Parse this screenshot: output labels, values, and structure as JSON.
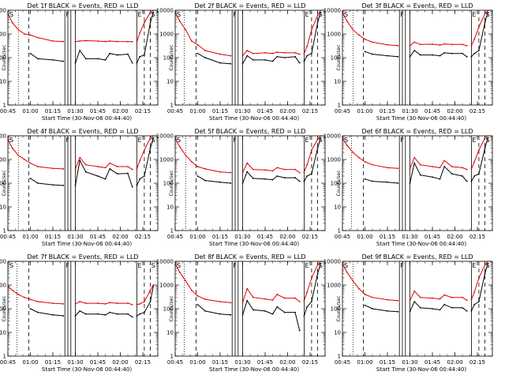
{
  "colors": {
    "events": "#000000",
    "lld": "#e00000",
    "axes": "#000000",
    "background": "#ffffff"
  },
  "chart_data": {
    "type": "line",
    "layout": "3x3 grid of log-scale time-series panels",
    "y_scale": "log",
    "ylim": [
      1,
      10000
    ],
    "yticks": [
      1,
      10,
      100,
      1000,
      10000
    ],
    "ytick_labels": [
      "1",
      "10",
      "100",
      "1000",
      "10000"
    ],
    "ylabel": "Counts/sec",
    "xlabel": "Start Time (30-Nov-06 00:44:40)",
    "xlim": [
      "00:45",
      "02:25"
    ],
    "xticks": [
      "00:45",
      "01:00",
      "01:15",
      "01:30",
      "01:45",
      "02:00",
      "02:15"
    ],
    "markers": {
      "dotted": [
        "00:52",
        "00:51",
        "00:52",
        "00:52",
        "00:52",
        "00:51",
        "00:51",
        "00:51",
        "00:52"
      ],
      "dashed": [
        "00:59",
        "02:16",
        "02:20"
      ],
      "solid": [
        "01:23",
        "01:25",
        "01:27",
        "01:30",
        "02:11"
      ]
    },
    "letters": {
      "start": "S",
      "F": "F",
      "E": "E",
      "end": "S"
    },
    "panels": [
      {
        "title": "Det 1f BLACK = Events, RED = LLD",
        "x": [
          "00:45",
          "00:48",
          "00:52",
          "00:56",
          "01:00",
          "01:05",
          "01:15",
          "01:22",
          "01:23",
          "01:30",
          "01:33",
          "01:37",
          "01:45",
          "01:50",
          "01:53",
          "01:58",
          "02:05",
          "02:08",
          "02:10",
          "02:11",
          "02:13",
          "02:16",
          "02:20",
          "02:22"
        ],
        "series": [
          {
            "name": "Events",
            "values": [
              null,
              null,
              null,
              null,
              150,
              90,
              80,
              70,
              null,
              60,
              200,
              90,
              90,
              80,
              150,
              130,
              140,
              60,
              null,
              60,
              110,
              130,
              3000,
              8000
            ]
          },
          {
            "name": "LLD",
            "values": [
              7000,
              3000,
              1500,
              1000,
              900,
              700,
              500,
              480,
              null,
              480,
              500,
              520,
              500,
              480,
              500,
              480,
              470,
              470,
              null,
              450,
              1100,
              3000,
              8000,
              10000
            ]
          }
        ]
      },
      {
        "title": "Det 2f BLACK = Events, RED = LLD",
        "x": [
          "00:45",
          "00:48",
          "00:52",
          "00:56",
          "01:00",
          "01:05",
          "01:15",
          "01:22",
          "01:23",
          "01:30",
          "01:33",
          "01:37",
          "01:45",
          "01:50",
          "01:53",
          "01:58",
          "02:05",
          "02:08",
          "02:10",
          "02:11",
          "02:13",
          "02:16",
          "02:20",
          "02:22"
        ],
        "series": [
          {
            "name": "Events",
            "values": [
              null,
              null,
              null,
              null,
              150,
              100,
              60,
              55,
              null,
              55,
              120,
              80,
              80,
              70,
              110,
              100,
              110,
              60,
              null,
              70,
              120,
              150,
              3000,
              8000
            ]
          },
          {
            "name": "LLD",
            "values": [
              8000,
              3500,
              1500,
              500,
              350,
              200,
              140,
              120,
              null,
              120,
              200,
              150,
              160,
              150,
              170,
              160,
              160,
              140,
              null,
              150,
              300,
              1500,
              6000,
              10000
            ]
          }
        ]
      },
      {
        "title": "Det 3f BLACK = Events, RED = LLD",
        "x": [
          "00:45",
          "00:48",
          "00:52",
          "00:56",
          "01:00",
          "01:05",
          "01:15",
          "01:22",
          "01:23",
          "01:30",
          "01:33",
          "01:37",
          "01:45",
          "01:50",
          "01:53",
          "01:58",
          "02:05",
          "02:08",
          "02:10",
          "02:11",
          "02:13",
          "02:16",
          "02:20",
          "02:22"
        ],
        "series": [
          {
            "name": "Events",
            "values": [
              null,
              null,
              null,
              null,
              180,
              140,
              120,
              110,
              null,
              110,
              200,
              130,
              130,
              120,
              160,
              150,
              150,
              110,
              null,
              110,
              150,
              200,
              3000,
              8000
            ]
          },
          {
            "name": "LLD",
            "values": [
              8000,
              3500,
              1500,
              900,
              600,
              450,
              350,
              320,
              null,
              320,
              450,
              360,
              370,
              340,
              380,
              360,
              360,
              320,
              null,
              320,
              600,
              2000,
              7000,
              10000
            ]
          }
        ]
      },
      {
        "title": "Det 4f BLACK = Events, RED = LLD",
        "x": [
          "00:45",
          "00:48",
          "00:52",
          "00:56",
          "01:00",
          "01:05",
          "01:15",
          "01:22",
          "01:23",
          "01:30",
          "01:33",
          "01:37",
          "01:45",
          "01:50",
          "01:53",
          "01:58",
          "02:05",
          "02:08",
          "02:10",
          "02:11",
          "02:13",
          "02:16",
          "02:20",
          "02:22"
        ],
        "series": [
          {
            "name": "Events",
            "values": [
              null,
              null,
              null,
              null,
              160,
              100,
              85,
              80,
              null,
              80,
              900,
              300,
              200,
              150,
              400,
              250,
              260,
              70,
              null,
              80,
              150,
              200,
              3000,
              8000
            ]
          },
          {
            "name": "LLD",
            "values": [
              7000,
              3000,
              1500,
              1000,
              700,
              500,
              420,
              400,
              null,
              400,
              1200,
              600,
              500,
              450,
              700,
              500,
              500,
              380,
              null,
              400,
              900,
              2500,
              8000,
              10000
            ]
          }
        ]
      },
      {
        "title": "Det 5f BLACK = Events, RED = LLD",
        "x": [
          "00:45",
          "00:48",
          "00:52",
          "00:56",
          "01:00",
          "01:05",
          "01:15",
          "01:22",
          "01:23",
          "01:30",
          "01:33",
          "01:37",
          "01:45",
          "01:50",
          "01:53",
          "01:58",
          "02:05",
          "02:08",
          "02:10",
          "02:11",
          "02:13",
          "02:16",
          "02:20",
          "02:22"
        ],
        "series": [
          {
            "name": "Events",
            "values": [
              null,
              null,
              null,
              null,
              200,
              130,
              110,
              100,
              null,
              100,
              300,
              160,
              150,
              140,
              200,
              170,
              170,
              120,
              null,
              120,
              200,
              250,
              3000,
              8000
            ]
          },
          {
            "name": "LLD",
            "values": [
              8000,
              3500,
              1500,
              800,
              500,
              400,
              300,
              280,
              null,
              280,
              700,
              380,
              360,
              330,
              450,
              380,
              380,
              280,
              null,
              300,
              600,
              2500,
              7000,
              10000
            ]
          }
        ]
      },
      {
        "title": "Det 6f BLACK = Events, RED = LLD",
        "x": [
          "00:45",
          "00:48",
          "00:52",
          "00:56",
          "01:00",
          "01:05",
          "01:15",
          "01:22",
          "01:23",
          "01:30",
          "01:33",
          "01:37",
          "01:45",
          "01:50",
          "01:53",
          "01:58",
          "02:05",
          "02:08",
          "02:10",
          "02:11",
          "02:13",
          "02:16",
          "02:20",
          "02:22"
        ],
        "series": [
          {
            "name": "Events",
            "values": [
              null,
              null,
              null,
              null,
              150,
              120,
              110,
              100,
              null,
              100,
              700,
              220,
              180,
              150,
              500,
              250,
              200,
              120,
              null,
              120,
              200,
              250,
              3000,
              8000
            ]
          },
          {
            "name": "LLD",
            "values": [
              8000,
              4000,
              2000,
              1200,
              800,
              600,
              450,
              420,
              null,
              420,
              1200,
              600,
              500,
              450,
              900,
              500,
              450,
              380,
              null,
              400,
              800,
              2500,
              8000,
              10000
            ]
          }
        ]
      },
      {
        "title": "Det 7f BLACK = Events, RED = LLD",
        "x": [
          "00:45",
          "00:48",
          "00:52",
          "00:56",
          "01:00",
          "01:05",
          "01:15",
          "01:22",
          "01:23",
          "01:30",
          "01:33",
          "01:37",
          "01:45",
          "01:50",
          "01:53",
          "01:58",
          "02:05",
          "02:08",
          "02:10",
          "02:11",
          "02:13",
          "02:16",
          "02:20",
          "02:22"
        ],
        "series": [
          {
            "name": "Events",
            "values": [
              null,
              null,
              null,
              null,
              100,
              70,
              55,
              50,
              null,
              50,
              80,
              60,
              60,
              55,
              70,
              60,
              60,
              45,
              null,
              50,
              60,
              70,
              200,
              900
            ]
          },
          {
            "name": "LLD",
            "values": [
              900,
              600,
              400,
              300,
              250,
              200,
              170,
              160,
              null,
              160,
              200,
              170,
              170,
              160,
              180,
              170,
              170,
              150,
              null,
              150,
              160,
              200,
              600,
              1000
            ]
          }
        ]
      },
      {
        "title": "Det 8f BLACK = Events, RED = LLD",
        "x": [
          "00:45",
          "00:48",
          "00:52",
          "00:56",
          "01:00",
          "01:05",
          "01:15",
          "01:22",
          "01:23",
          "01:30",
          "01:33",
          "01:37",
          "01:45",
          "01:50",
          "01:53",
          "01:58",
          "02:05",
          "02:08",
          "02:10",
          "02:11",
          "02:13",
          "02:16",
          "02:20",
          "02:22"
        ],
        "series": [
          {
            "name": "Events",
            "values": [
              null,
              null,
              null,
              null,
              150,
              80,
              60,
              55,
              null,
              55,
              220,
              90,
              80,
              60,
              120,
              70,
              70,
              12,
              null,
              50,
              120,
              200,
              3000,
              8000
            ]
          },
          {
            "name": "LLD",
            "values": [
              8000,
              3500,
              1500,
              600,
              350,
              250,
              200,
              180,
              null,
              180,
              700,
              300,
              260,
              230,
              400,
              280,
              280,
              200,
              null,
              220,
              500,
              2000,
              7000,
              10000
            ]
          }
        ]
      },
      {
        "title": "Det 9f BLACK = Events, RED = LLD",
        "x": [
          "00:45",
          "00:48",
          "00:52",
          "00:56",
          "01:00",
          "01:05",
          "01:15",
          "01:22",
          "01:23",
          "01:30",
          "01:33",
          "01:37",
          "01:45",
          "01:50",
          "01:53",
          "01:58",
          "02:05",
          "02:08",
          "02:10",
          "02:11",
          "02:13",
          "02:16",
          "02:20",
          "02:22"
        ],
        "series": [
          {
            "name": "Events",
            "values": [
              null,
              null,
              null,
              null,
              140,
              100,
              80,
              75,
              null,
              75,
              200,
              110,
              100,
              90,
              150,
              110,
              110,
              80,
              null,
              80,
              150,
              200,
              3000,
              8000
            ]
          },
          {
            "name": "LLD",
            "values": [
              8000,
              3500,
              1500,
              700,
              400,
              300,
              240,
              220,
              null,
              220,
              550,
              300,
              280,
              260,
              380,
              300,
              300,
              230,
              null,
              240,
              500,
              2000,
              7000,
              10000
            ]
          }
        ]
      }
    ]
  }
}
